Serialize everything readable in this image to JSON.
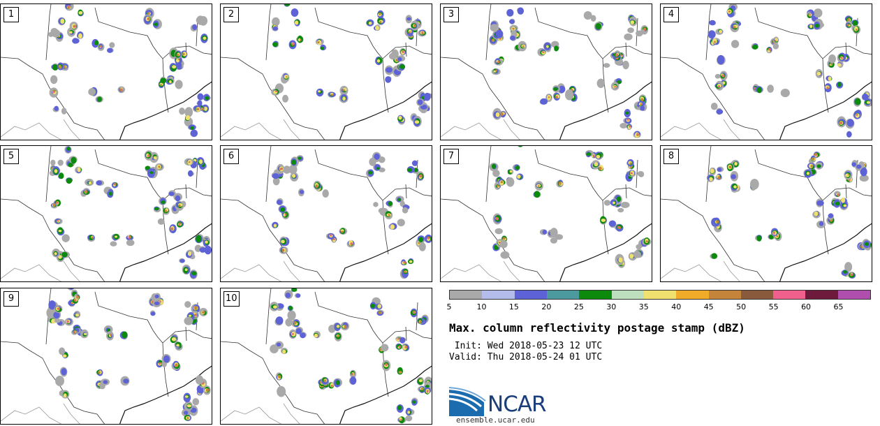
{
  "product": {
    "title": "Max. column reflectivity postage stamp (dBZ)",
    "init": " Init: Wed 2018-05-23 12 UTC",
    "valid": "Valid: Thu 2018-05-24 01 UTC",
    "org_name": "NCAR",
    "site": "ensemble.ucar.edu"
  },
  "members": [
    {
      "label": "1"
    },
    {
      "label": "2"
    },
    {
      "label": "3"
    },
    {
      "label": "4"
    },
    {
      "label": "5"
    },
    {
      "label": "6"
    },
    {
      "label": "7"
    },
    {
      "label": "8"
    },
    {
      "label": "9"
    },
    {
      "label": "10"
    }
  ],
  "colorbar": {
    "tick_labels": [
      "5",
      "10",
      "15",
      "20",
      "25",
      "30",
      "35",
      "40",
      "45",
      "50",
      "55",
      "60",
      "65"
    ],
    "colors": [
      "#a9a9a9",
      "#b4bcec",
      "#5d63d6",
      "#4c9a9e",
      "#0c8a0c",
      "#bedfbe",
      "#f0e070",
      "#f0ac28",
      "#c4853a",
      "#8a5a3c",
      "#f0608c",
      "#6e1a3c",
      "#b04eae"
    ]
  },
  "map_colors": {
    "boundary": "#333333",
    "coast": "#111111",
    "border_light": "#999999"
  }
}
